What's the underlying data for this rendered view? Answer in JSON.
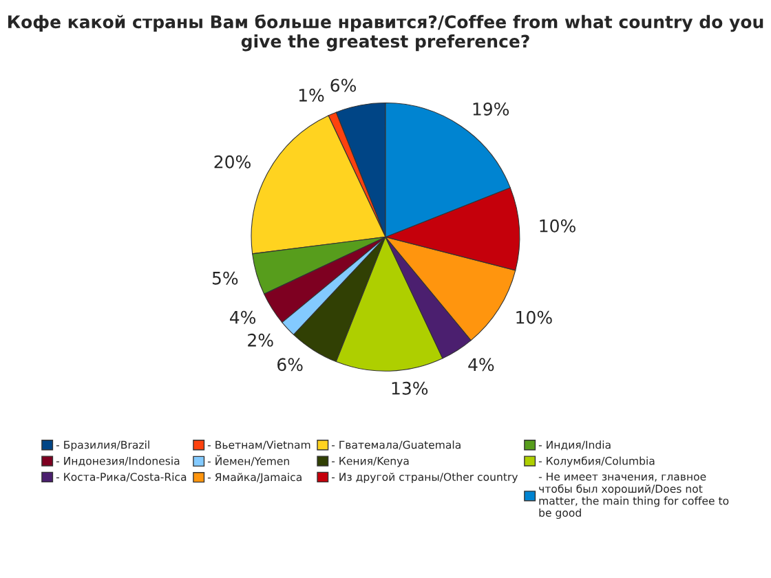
{
  "chart_data": {
    "type": "pie",
    "title": "Кофе какой страны Вам больше нравится?/Coffee from what country do you give the greatest preference?",
    "categories": [
      "- Бразилия/Brazil",
      "- Вьетнам/Vietnam",
      "- Гватемала/Guatemala",
      "- Индия/India",
      "- Индонезия/Indonesia",
      "- Йемен/Yemen",
      "- Кения/Kenya",
      "- Колумбия/Columbia",
      "- Коста-Рика/Costa-Rica",
      "- Ямайка/Jamaica",
      "- Из другой страны/Other country",
      "- Не имеет значения, главное\nчтобы был хороший/Does not\nmatter, the main thing for coffee to\nbe good"
    ],
    "values": [
      6,
      1,
      20,
      5,
      4,
      2,
      6,
      13,
      4,
      10,
      10,
      19
    ],
    "value_labels": [
      "6%",
      "1%",
      "20%",
      "5%",
      "4%",
      "2%",
      "6%",
      "13%",
      "4%",
      "10%",
      "10%",
      "19%"
    ],
    "colors": [
      "#004586",
      "#ff420e",
      "#ffd320",
      "#579d1c",
      "#7e0021",
      "#83caff",
      "#314004",
      "#aecf00",
      "#4b1f6f",
      "#ff950e",
      "#c5000b",
      "#0084d1"
    ],
    "legend": "bottom"
  }
}
